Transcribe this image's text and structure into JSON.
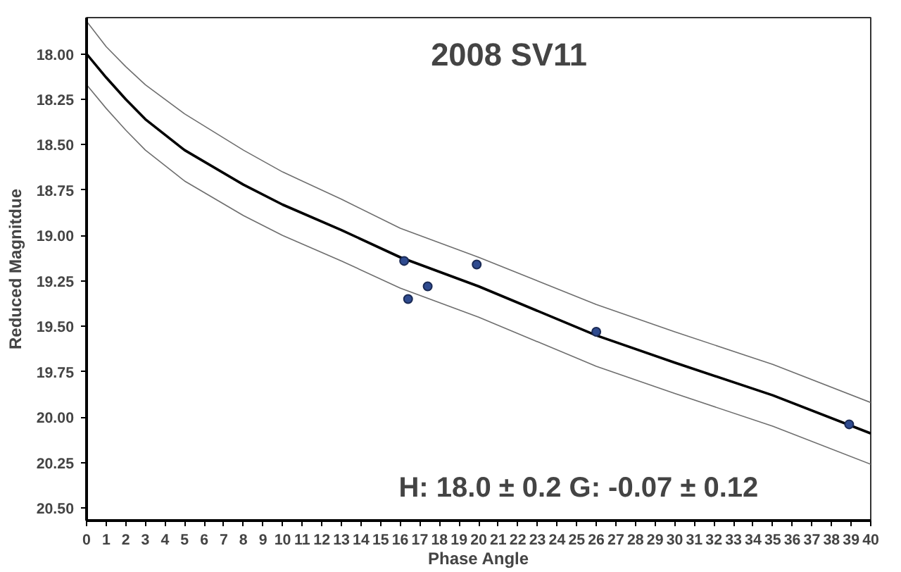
{
  "chart_data": {
    "type": "scatter",
    "title": "2008 SV11",
    "xlabel": "Phase Angle",
    "ylabel": "Reduced Magnitdue",
    "annotations": [
      "H: 18.0 ± 0.2   G: -0.07 ± 0.12"
    ],
    "xlim": [
      0,
      40
    ],
    "ylim": [
      20.57,
      17.8
    ],
    "xticks": [
      0,
      1,
      2,
      3,
      4,
      5,
      6,
      7,
      8,
      9,
      10,
      11,
      12,
      13,
      14,
      15,
      16,
      17,
      18,
      19,
      20,
      21,
      22,
      23,
      24,
      25,
      26,
      27,
      28,
      29,
      30,
      31,
      32,
      33,
      34,
      35,
      36,
      37,
      38,
      39,
      40
    ],
    "yticks": [
      {
        "value": 18.0,
        "label": "18.00"
      },
      {
        "value": 18.25,
        "label": "18.25"
      },
      {
        "value": 18.5,
        "label": "18.50"
      },
      {
        "value": 18.75,
        "label": "18.75"
      },
      {
        "value": 19.0,
        "label": "19.00"
      },
      {
        "value": 19.25,
        "label": "19.25"
      },
      {
        "value": 19.5,
        "label": "19.50"
      },
      {
        "value": 19.75,
        "label": "19.75"
      },
      {
        "value": 20.0,
        "label": "20.00"
      },
      {
        "value": 20.25,
        "label": "20.25"
      },
      {
        "value": 20.5,
        "label": "20.50"
      }
    ],
    "grid": false,
    "series": [
      {
        "type": "line",
        "color": "#000000",
        "x": [
          0,
          1,
          2,
          3,
          5,
          8,
          10,
          13,
          16,
          20,
          26,
          30,
          35,
          40
        ],
        "values": [
          18.0,
          18.13,
          18.25,
          18.36,
          18.53,
          18.72,
          18.83,
          18.97,
          19.12,
          19.28,
          19.55,
          19.7,
          19.88,
          20.09
        ]
      },
      {
        "type": "line",
        "color": "#6e6e6e",
        "x": [
          0,
          1,
          2,
          3,
          5,
          8,
          10,
          13,
          16,
          20,
          26,
          30,
          35,
          40
        ],
        "values": [
          17.82,
          17.96,
          18.07,
          18.17,
          18.33,
          18.53,
          18.65,
          18.8,
          18.96,
          19.12,
          19.38,
          19.53,
          19.71,
          19.92
        ]
      },
      {
        "type": "line",
        "color": "#6e6e6e",
        "x": [
          0,
          1,
          2,
          3,
          5,
          8,
          10,
          13,
          16,
          20,
          26,
          30,
          35,
          40
        ],
        "values": [
          18.17,
          18.3,
          18.42,
          18.53,
          18.7,
          18.89,
          19.0,
          19.14,
          19.29,
          19.45,
          19.72,
          19.87,
          20.05,
          20.26
        ]
      },
      {
        "marker": "circle",
        "color": "#2f4b8f",
        "x": [
          16.2,
          16.4,
          17.4,
          19.9,
          26.0,
          38.9
        ],
        "values": [
          19.14,
          19.35,
          19.28,
          19.16,
          19.53,
          20.04
        ]
      }
    ]
  }
}
